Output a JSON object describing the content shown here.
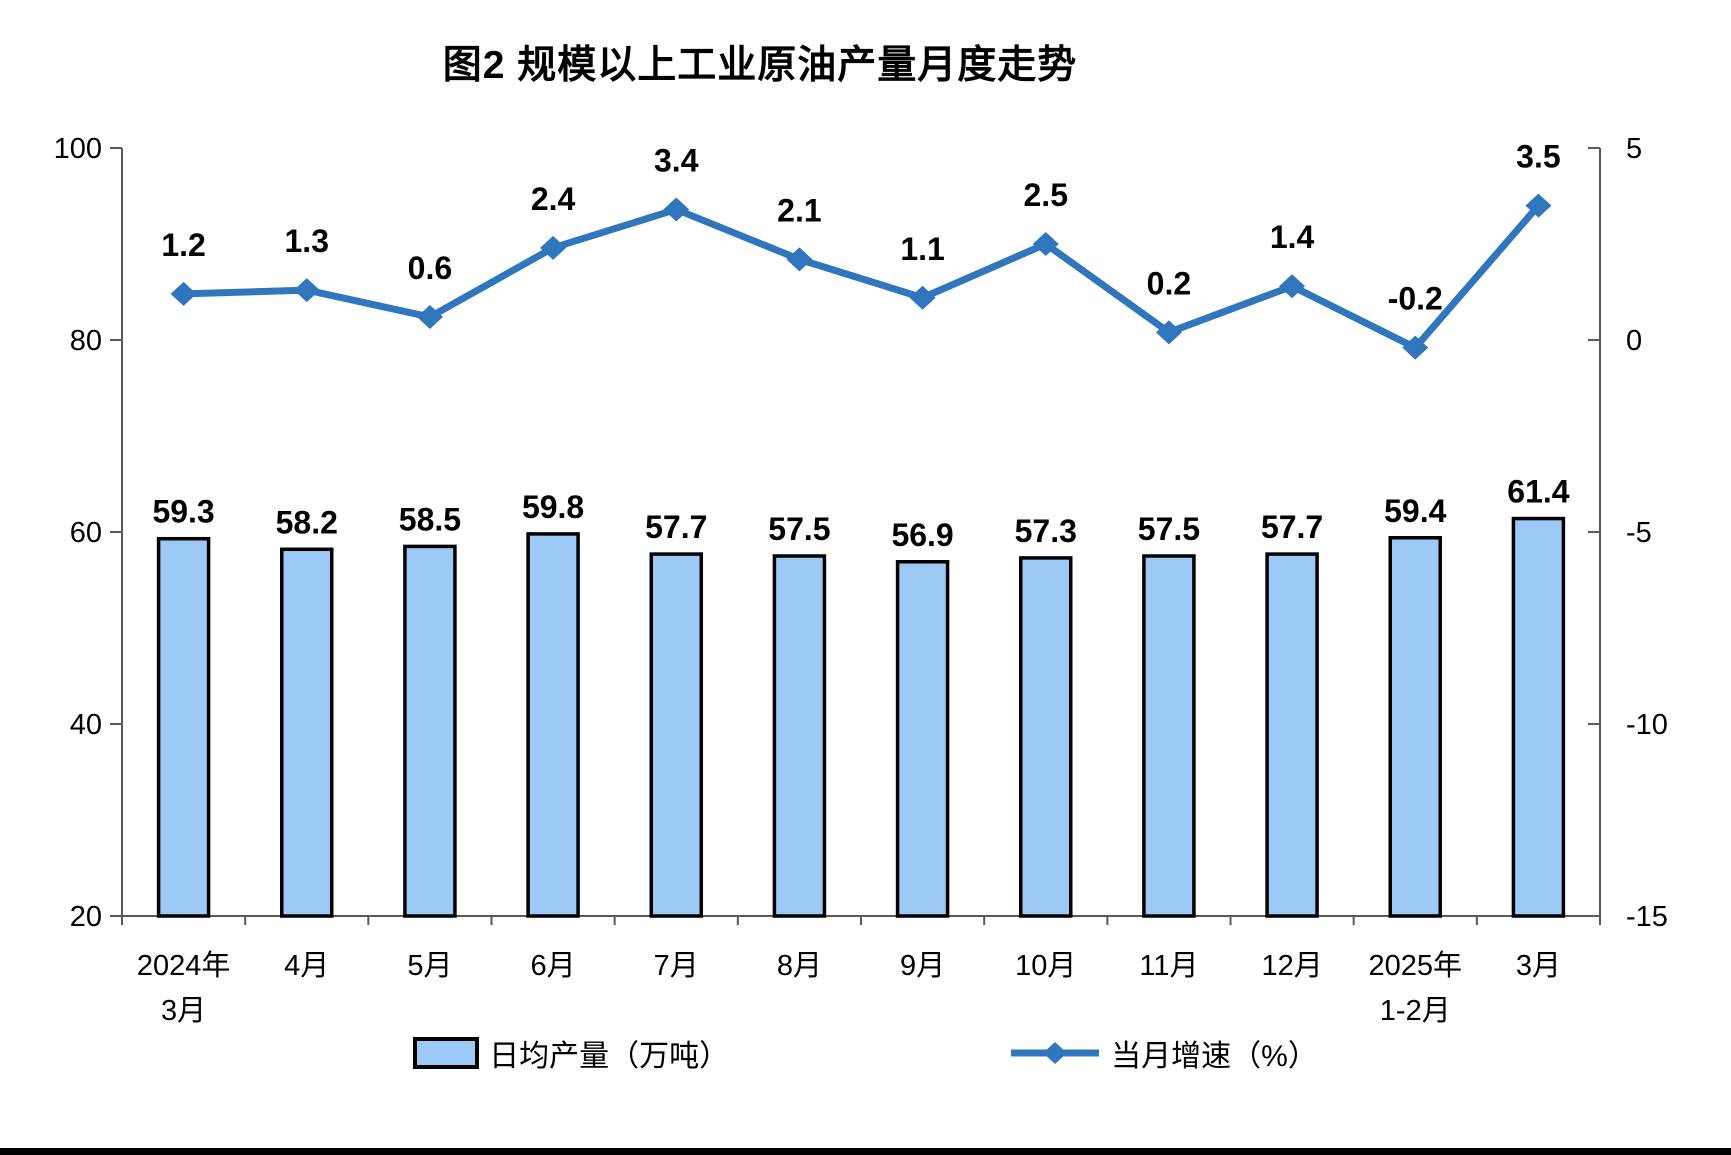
{
  "title": "图2 规模以上工业原油产量月度走势",
  "chart_data": {
    "type": "combo-bar-line",
    "categories": [
      "2024年\n3月",
      "4月",
      "5月",
      "6月",
      "7月",
      "8月",
      "9月",
      "10月",
      "11月",
      "12月",
      "2025年\n1-2月",
      "3月"
    ],
    "series": [
      {
        "name": "日均产量（万吨）",
        "type": "bar",
        "axis": "left",
        "values": [
          59.3,
          58.2,
          58.5,
          59.8,
          57.7,
          57.5,
          56.9,
          57.3,
          57.5,
          57.7,
          59.4,
          61.4
        ],
        "fill": "#9DC9F7",
        "stroke": "#000000"
      },
      {
        "name": "当月增速（%）",
        "type": "line",
        "axis": "right",
        "values": [
          1.2,
          1.3,
          0.6,
          2.4,
          3.4,
          2.1,
          1.1,
          2.5,
          0.2,
          1.4,
          -0.2,
          3.5
        ],
        "color": "#2F76BC"
      }
    ],
    "left_axis": {
      "min": 20,
      "max": 100,
      "ticks": [
        100,
        80,
        60,
        40,
        20
      ]
    },
    "right_axis": {
      "min": -15,
      "max": 5,
      "ticks": [
        5,
        0,
        -5,
        -10,
        -15
      ]
    },
    "legend_position": "bottom",
    "grid": false,
    "axis_color": "#595959",
    "label_color": "#000000"
  }
}
